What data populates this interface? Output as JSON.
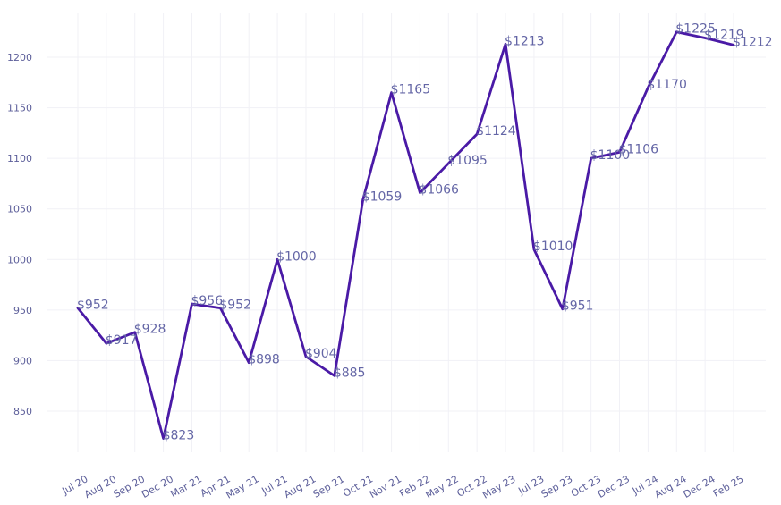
{
  "chart_data": {
    "type": "line",
    "title": "",
    "xlabel": "",
    "ylabel": "",
    "categories": [
      "Jul 20",
      "Aug 20",
      "Sep 20",
      "Dec 20",
      "Mar 21",
      "Apr 21",
      "May 21",
      "Jul 21",
      "Aug 21",
      "Sep 21",
      "Oct 21",
      "Nov 21",
      "Feb 22",
      "May 22",
      "Oct 22",
      "May 23",
      "Jul 23",
      "Sep 23",
      "Oct 23",
      "Dec 23",
      "Jul 24",
      "Aug 24",
      "Dec 24",
      "Feb 25"
    ],
    "values": [
      952,
      917,
      928,
      823,
      956,
      952,
      898,
      1000,
      904,
      885,
      1059,
      1165,
      1066,
      1095,
      1124,
      1213,
      1010,
      951,
      1100,
      1106,
      1170,
      1225,
      1219,
      1212
    ],
    "data_labels": [
      "$952",
      "$917",
      "$928",
      "$823",
      "$956",
      "$952",
      "$898",
      "$1000",
      "$904",
      "$885",
      "$1059",
      "$1165",
      "$1066",
      "$1095",
      "$1124",
      "$1213",
      "$1010",
      "$951",
      "$1100",
      "$1106",
      "$1170",
      "$1225",
      "$1219",
      "$1212"
    ],
    "yticks": [
      850,
      900,
      950,
      1000,
      1050,
      1100,
      1150,
      1200
    ],
    "ylim": [
      805,
      1235
    ],
    "grid": true,
    "legend": "none",
    "series_color": "#4a1aa6"
  }
}
